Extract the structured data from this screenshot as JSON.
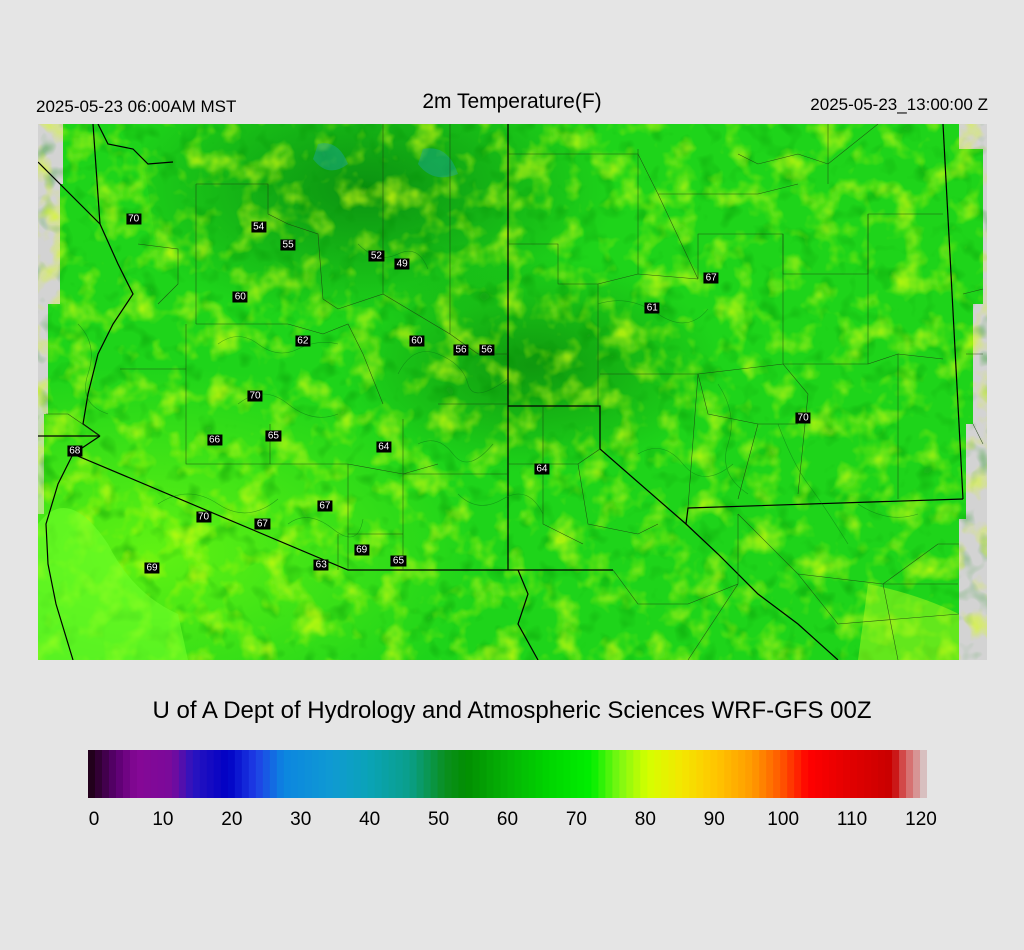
{
  "header": {
    "local_time": "2025-05-23 06:00AM MST",
    "title": "2m Temperature(F)",
    "valid_time": "2025-05-23_13:00:00 Z"
  },
  "stations": [
    {
      "label": "70",
      "x": -113.6,
      "y": 40.1
    },
    {
      "label": "54",
      "x": -111.9,
      "y": 40.0
    },
    {
      "label": "55",
      "x": -111.5,
      "y": 39.75
    },
    {
      "label": "52",
      "x": -110.3,
      "y": 39.6
    },
    {
      "label": "49",
      "x": -109.95,
      "y": 39.5
    },
    {
      "label": "60",
      "x": -112.15,
      "y": 39.05
    },
    {
      "label": "62",
      "x": -111.3,
      "y": 38.45
    },
    {
      "label": "60",
      "x": -109.75,
      "y": 38.45
    },
    {
      "label": "56",
      "x": -109.15,
      "y": 38.32
    },
    {
      "label": "56",
      "x": -108.8,
      "y": 38.32
    },
    {
      "label": "61",
      "x": -106.55,
      "y": 38.9
    },
    {
      "label": "67",
      "x": -105.75,
      "y": 39.3
    },
    {
      "label": "70",
      "x": -111.95,
      "y": 37.7
    },
    {
      "label": "65",
      "x": -111.7,
      "y": 37.15
    },
    {
      "label": "66",
      "x": -112.5,
      "y": 37.1
    },
    {
      "label": "64",
      "x": -110.2,
      "y": 37.0
    },
    {
      "label": "70",
      "x": -104.5,
      "y": 37.4
    },
    {
      "label": "64",
      "x": -108.05,
      "y": 36.7
    },
    {
      "label": "68",
      "x": -114.4,
      "y": 36.95
    },
    {
      "label": "67",
      "x": -111.0,
      "y": 36.2
    },
    {
      "label": "70",
      "x": -112.65,
      "y": 36.05
    },
    {
      "label": "67",
      "x": -111.85,
      "y": 35.95
    },
    {
      "label": "69",
      "x": -110.5,
      "y": 35.6
    },
    {
      "label": "63",
      "x": -111.05,
      "y": 35.4
    },
    {
      "label": "65",
      "x": -110.0,
      "y": 35.45
    },
    {
      "label": "69",
      "x": -113.35,
      "y": 35.35
    }
  ],
  "credit": "U of A Dept of Hydrology and Atmospheric Sciences WRF-GFS 00Z",
  "colorbar": {
    "min": 0,
    "max": 120,
    "ticks": [
      "0",
      "10",
      "20",
      "30",
      "40",
      "50",
      "60",
      "70",
      "80",
      "90",
      "100",
      "110",
      "120"
    ]
  }
}
